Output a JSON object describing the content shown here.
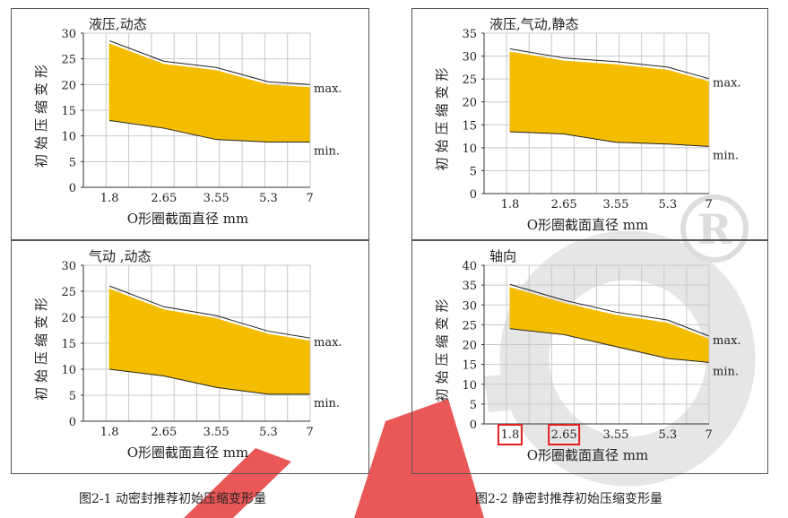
{
  "captions": {
    "left": "图2-1 动密封推荐初始压缩变形量",
    "right": "图2-2 静密封推荐初始压缩变形量"
  },
  "colors": {
    "fill": "#f5bd00",
    "line": "#222222",
    "grid": "#c8c8c8",
    "highlight": "#e02020",
    "watermark_red": "#e63a3a",
    "watermark_gray": "#e2e2e2"
  },
  "chart_data": [
    {
      "type": "area",
      "title": "液压,动态",
      "xlabel": "O形圈截面直径 mm",
      "ylabel": "初始压缩变形",
      "categories": [
        "1.8",
        "2.65",
        "3.55",
        "5.3",
        "7"
      ],
      "ylim": [
        0,
        30
      ],
      "yticks": [
        0,
        5,
        10,
        15,
        20,
        25,
        30
      ],
      "series": [
        {
          "name": "max.",
          "x": [
            1.8,
            2.65,
            3.55,
            5.3,
            7
          ],
          "values": [
            28,
            24,
            22.8,
            20,
            19.5
          ]
        },
        {
          "name": "min.",
          "x": [
            1.8,
            2.65,
            3.55,
            5.3,
            7
          ],
          "values": [
            13,
            11.5,
            9.3,
            8.8,
            8.8
          ]
        }
      ],
      "grid": true
    },
    {
      "type": "area",
      "title": "液压,气动,静态",
      "xlabel": "O形圈截面直径 mm",
      "ylabel": "初始压缩变形",
      "categories": [
        "1.8",
        "2.65",
        "3.55",
        "5.3",
        "7"
      ],
      "ylim": [
        0,
        35
      ],
      "yticks": [
        0,
        5,
        10,
        15,
        20,
        25,
        30,
        35
      ],
      "series": [
        {
          "name": "max.",
          "x": [
            1.8,
            2.65,
            3.55,
            5.3,
            7
          ],
          "values": [
            31,
            29,
            28.2,
            27,
            24.5
          ]
        },
        {
          "name": "min.",
          "x": [
            1.8,
            2.65,
            3.55,
            5.3,
            7
          ],
          "values": [
            13.5,
            13,
            11.2,
            10.8,
            10.3
          ]
        }
      ],
      "grid": true
    },
    {
      "type": "area",
      "title": "气动 ,动态",
      "xlabel": "O形圈截面直径 mm",
      "ylabel": "初始压缩变形",
      "categories": [
        "1.8",
        "2.65",
        "3.55",
        "5.3",
        "7"
      ],
      "ylim": [
        0,
        30
      ],
      "yticks": [
        0,
        5,
        10,
        15,
        20,
        25,
        30
      ],
      "series": [
        {
          "name": "max.",
          "x": [
            1.8,
            2.65,
            3.55,
            5.3,
            7
          ],
          "values": [
            25.5,
            21.5,
            19.8,
            16.8,
            15.5
          ]
        },
        {
          "name": "min.",
          "x": [
            1.8,
            2.65,
            3.55,
            5.3,
            7
          ],
          "values": [
            10,
            8.7,
            6.5,
            5.2,
            5.2
          ]
        }
      ],
      "grid": true
    },
    {
      "type": "area",
      "title": "轴向",
      "xlabel": "O形圈截面直径 mm",
      "ylabel": "初始压缩变形",
      "categories": [
        "1.8",
        "2.65",
        "3.55",
        "5.3",
        "7"
      ],
      "ylim": [
        0,
        40
      ],
      "yticks": [
        0,
        5,
        10,
        15,
        20,
        25,
        30,
        35,
        40
      ],
      "series": [
        {
          "name": "max.",
          "x": [
            1.8,
            2.65,
            3.55,
            5.3,
            7
          ],
          "values": [
            34.5,
            30.5,
            27.5,
            25.5,
            21.5
          ]
        },
        {
          "name": "min.",
          "x": [
            1.8,
            2.65,
            3.55,
            5.3,
            7
          ],
          "values": [
            24,
            22.5,
            19.5,
            16.5,
            15.5
          ]
        }
      ],
      "grid": true,
      "highlighted_ticks": [
        "1.8",
        "2.65"
      ]
    }
  ]
}
